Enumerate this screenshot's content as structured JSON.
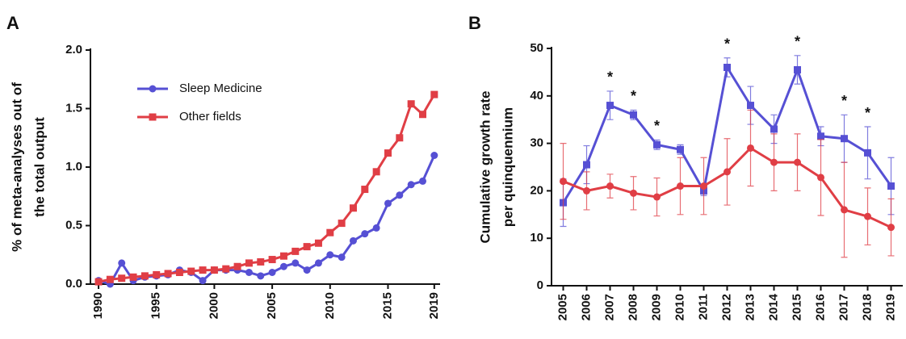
{
  "chart_data": [
    {
      "type": "line",
      "panel": "A",
      "ylabel": [
        "% of meta-analyses out of",
        "the total output"
      ],
      "x": [
        1990,
        1991,
        1992,
        1993,
        1994,
        1995,
        1996,
        1997,
        1998,
        1999,
        2000,
        2001,
        2002,
        2003,
        2004,
        2005,
        2006,
        2007,
        2008,
        2009,
        2010,
        2011,
        2012,
        2013,
        2014,
        2015,
        2016,
        2017,
        2018,
        2019
      ],
      "xlim": [
        1989.3,
        2019.5
      ],
      "xticks": [
        1990,
        1995,
        2000,
        2005,
        2010,
        2015,
        2019
      ],
      "ylim": [
        0,
        2
      ],
      "yticks": [
        {
          "value": 0,
          "label": "0.0"
        },
        {
          "value": 0.5,
          "label": "0.5"
        },
        {
          "value": 1,
          "label": "1.0"
        },
        {
          "value": 1.5,
          "label": "1.5"
        },
        {
          "value": 2,
          "label": "2.0"
        }
      ],
      "series": [
        {
          "name": "Sleep Medicine",
          "color": "#5650d4",
          "marker": "circle",
          "values": [
            0.03,
            0.0,
            0.18,
            0.03,
            0.06,
            0.07,
            0.08,
            0.12,
            0.1,
            0.03,
            0.12,
            0.12,
            0.12,
            0.1,
            0.07,
            0.1,
            0.15,
            0.18,
            0.12,
            0.18,
            0.25,
            0.23,
            0.37,
            0.43,
            0.48,
            0.69,
            0.76,
            0.85,
            0.88,
            1.1
          ]
        },
        {
          "name": "Other fields",
          "color": "#e03e45",
          "marker": "square",
          "values": [
            0.02,
            0.04,
            0.05,
            0.06,
            0.07,
            0.08,
            0.09,
            0.1,
            0.11,
            0.12,
            0.12,
            0.13,
            0.15,
            0.18,
            0.19,
            0.21,
            0.24,
            0.28,
            0.32,
            0.35,
            0.44,
            0.52,
            0.65,
            0.81,
            0.96,
            1.12,
            1.25,
            1.54,
            1.45,
            1.62
          ]
        }
      ]
    },
    {
      "type": "line",
      "panel": "B",
      "ylabel": [
        "Cumulative growth rate",
        "per quinquennium"
      ],
      "categories": [
        "2005",
        "2006",
        "2007",
        "2008",
        "2009",
        "2010",
        "2011",
        "2012",
        "2013",
        "2014",
        "2015",
        "2016",
        "2017",
        "2018",
        "2019"
      ],
      "ylim": [
        0,
        50
      ],
      "yticks": [
        0,
        10,
        20,
        30,
        40,
        50
      ],
      "significance": [
        null,
        null,
        "*",
        "*",
        "*",
        null,
        null,
        "*",
        null,
        null,
        "*",
        null,
        "*",
        "*",
        null
      ],
      "series": [
        {
          "name": "Sleep Medicine",
          "color": "#5650d4",
          "marker": "square",
          "values": [
            17.5,
            25.5,
            38,
            36,
            29.7,
            28.7,
            20,
            46,
            38,
            33,
            45.5,
            31.5,
            31,
            28,
            21
          ],
          "errors": [
            5,
            4,
            3,
            1,
            1,
            1,
            1,
            2,
            4,
            3,
            3,
            2,
            5,
            5.5,
            6
          ]
        },
        {
          "name": "Other fields",
          "color": "#e03e45",
          "marker": "circle",
          "values": [
            22,
            20,
            21,
            19.5,
            18.7,
            21,
            21,
            24,
            29,
            26,
            26,
            22.8,
            16,
            14.6,
            12.3
          ],
          "errors": [
            8,
            4,
            2.5,
            3.5,
            4,
            6,
            6,
            7,
            8,
            6,
            6,
            8,
            10,
            6,
            6
          ]
        }
      ]
    }
  ]
}
